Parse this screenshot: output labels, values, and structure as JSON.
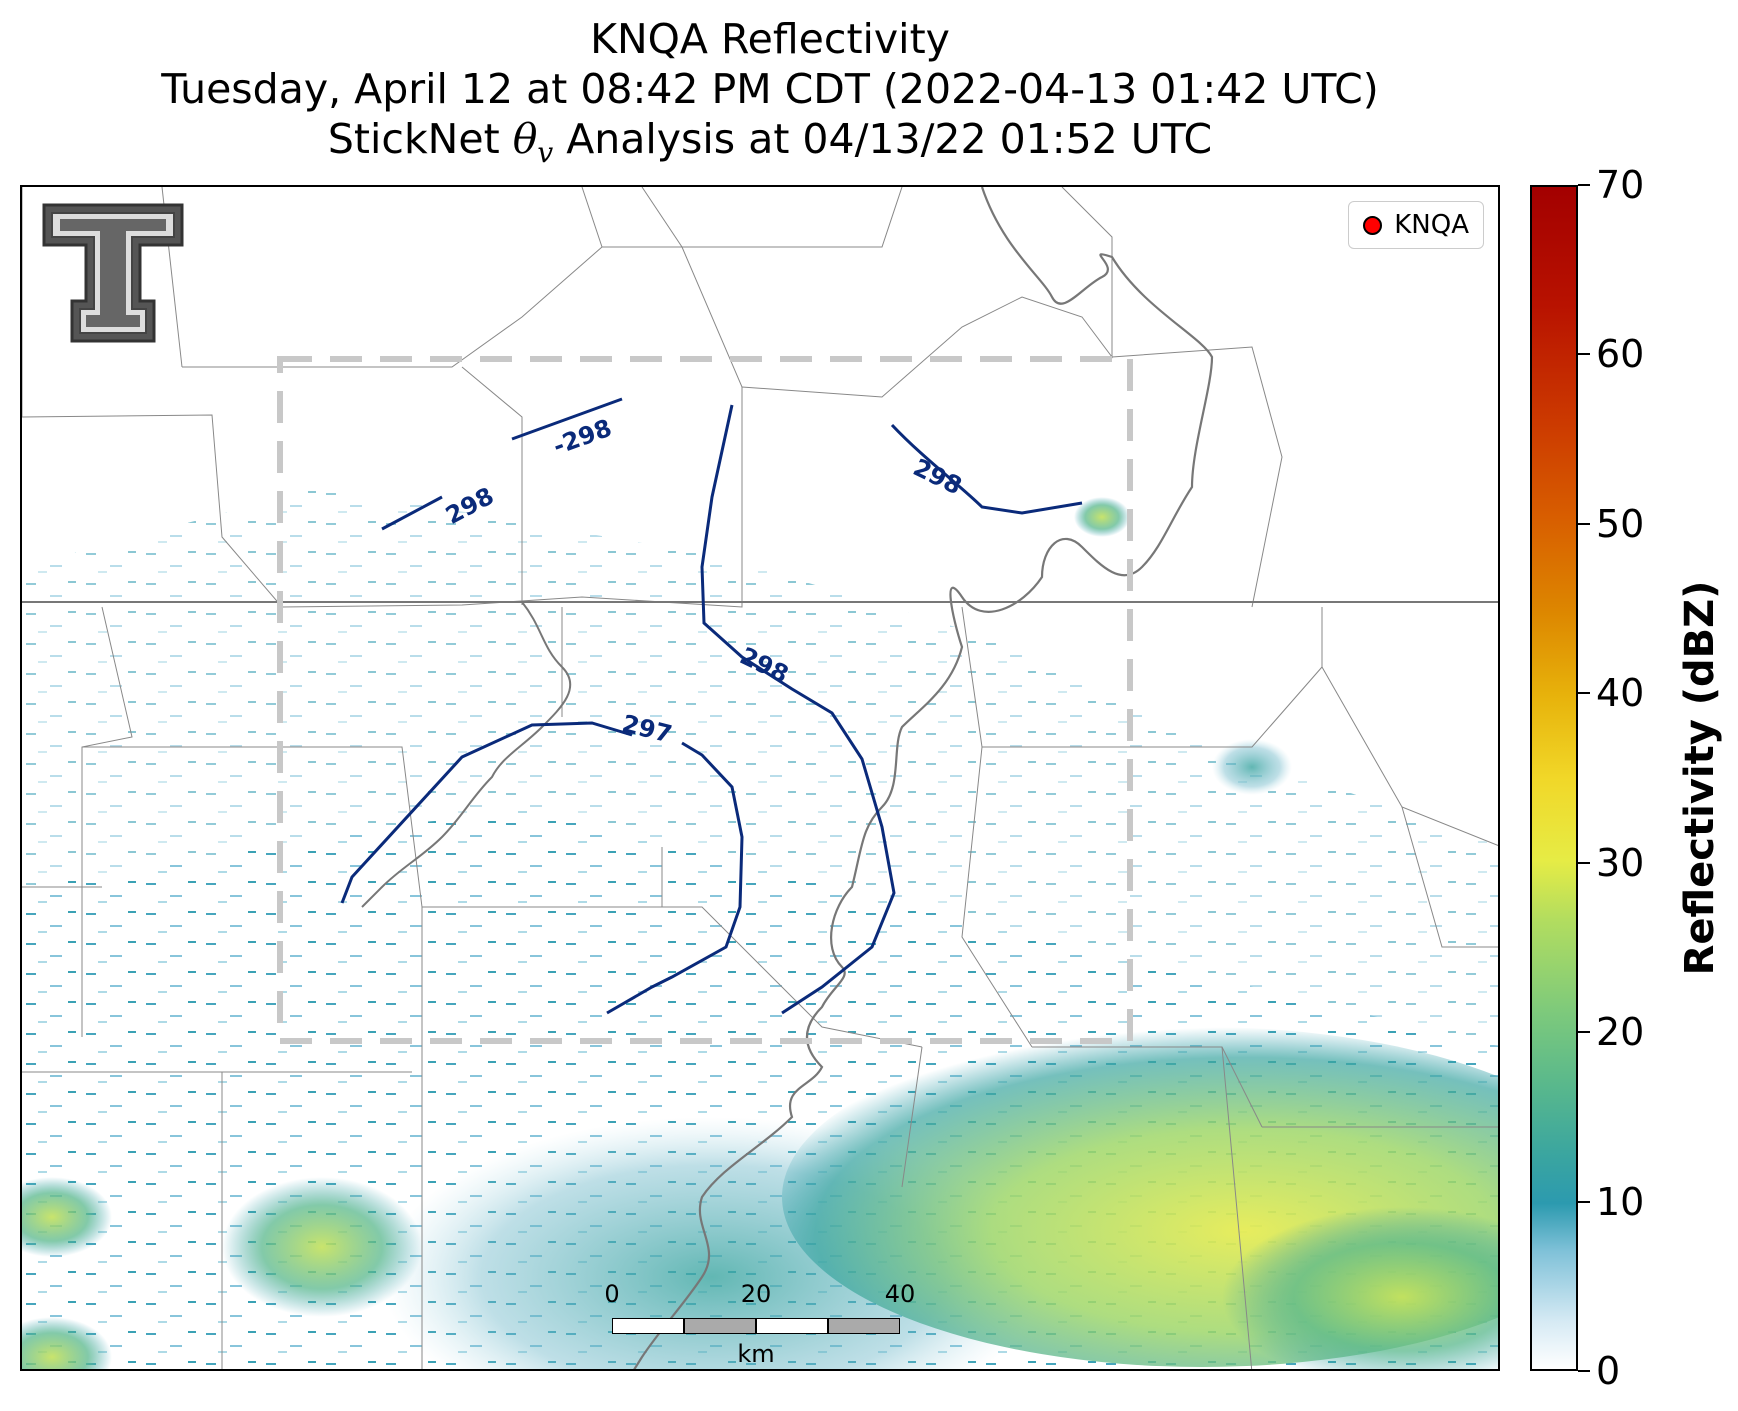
{
  "title": {
    "line1": "KNQA Reflectivity",
    "line2": "Tuesday, April 12 at 08:42 PM CDT (2022-04-13 01:42 UTC)",
    "line3_prefix": "StickNet ",
    "line3_symbol": "θ",
    "line3_sub": "v",
    "line3_suffix": " Analysis at 04/13/22 01:52 UTC"
  },
  "legend": {
    "label": "KNQA",
    "marker_color": "#ff0000"
  },
  "colorbar": {
    "title": "Reflectivity (dBZ)",
    "ticks": [
      "0",
      "10",
      "20",
      "30",
      "40",
      "50",
      "60",
      "70"
    ],
    "range": [
      0,
      70
    ]
  },
  "scalebar": {
    "ticks": [
      "0",
      "20",
      "40"
    ],
    "unit": "km"
  },
  "contours": {
    "labels": [
      "298",
      "-298",
      "298",
      "298",
      "297"
    ],
    "color": "#0a2a7a"
  },
  "analysis_box_color": "#c8c8c8",
  "logo": {
    "name": "Texas Tech double-T"
  }
}
